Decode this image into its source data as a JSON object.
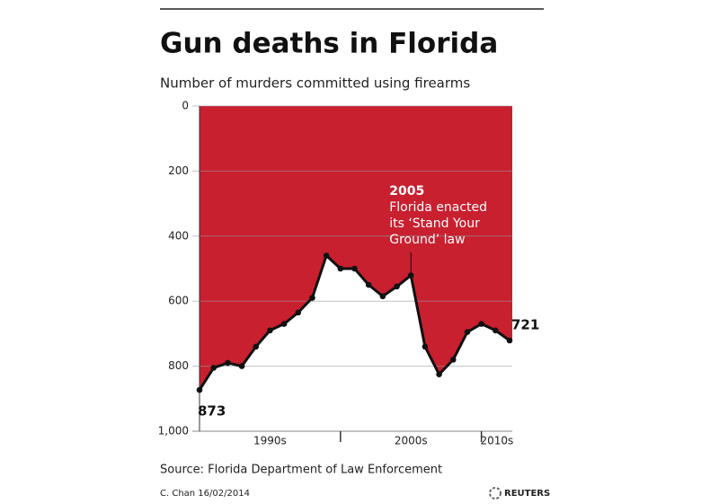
{
  "chart_data": {
    "type": "area",
    "title": "Gun deaths in Florida",
    "subtitle": "Number of murders committed using firearms",
    "categories": [
      null,
      null,
      null,
      null,
      null,
      null,
      null,
      null,
      null,
      null,
      null,
      null,
      null,
      null,
      null,
      null,
      null,
      null,
      null,
      null,
      null,
      null,
      null
    ],
    "decade_labels": [
      "1990s",
      "2000s",
      "2010s"
    ],
    "series": [
      {
        "name": "Gun deaths",
        "color": "#c8202f",
        "values": [
          873,
          805,
          790,
          800,
          740,
          690,
          670,
          635,
          590,
          460,
          500,
          500,
          550,
          585,
          555,
          521,
          740,
          825,
          780,
          695,
          670,
          690,
          721
        ],
        "value_labels": [
          "873",
          null,
          null,
          null,
          null,
          null,
          null,
          null,
          null,
          null,
          null,
          null,
          null,
          null,
          null,
          null,
          null,
          null,
          null,
          null,
          null,
          null,
          "721"
        ]
      }
    ],
    "ylim": [
      0,
      1000
    ],
    "y_inverted": true,
    "yticks": [
      0,
      200,
      400,
      600,
      800,
      {
        "value": 1000,
        "label": "1,000"
      }
    ],
    "grid": true,
    "annotation": {
      "title": "2005",
      "lines": [
        "Florida enacted",
        "its ‘Stand Your",
        "Ground’ law"
      ]
    },
    "source": "Source: Florida Department of Law Enforcement",
    "credit": "C. Chan  16/02/2014",
    "brand": "REUTERS"
  }
}
